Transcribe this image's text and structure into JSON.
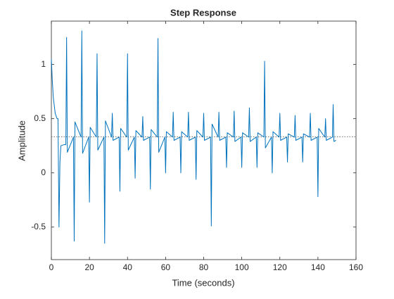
{
  "chart_data": {
    "type": "line",
    "title": "Step Response",
    "xlabel": "Time (seconds)",
    "ylabel": "Amplitude",
    "x": [
      0,
      0.5,
      1,
      2,
      3,
      3.5,
      4,
      4.5,
      5,
      6.5,
      7.6,
      8,
      8.4,
      11.6,
      12,
      12.4,
      15.6,
      16,
      16.4,
      19.6,
      20,
      20.4,
      23.6,
      24,
      24.4,
      27.6,
      28,
      28.4,
      31.6,
      32,
      32.4,
      35.6,
      36,
      36.4,
      39.6,
      40,
      40.4,
      43.6,
      44,
      44.4,
      47.6,
      48,
      48.4,
      51.6,
      52,
      52.4,
      55.6,
      56,
      56.4,
      59.6,
      60,
      60.4,
      63.6,
      64,
      64.4,
      67.6,
      68,
      68.4,
      71.6,
      72,
      72.4,
      75.6,
      76,
      76.4,
      79.6,
      80,
      80.4,
      83.6,
      84,
      84.4,
      87.6,
      88,
      88.4,
      91.6,
      92,
      92.4,
      95.6,
      96,
      96.4,
      99.6,
      100,
      100.4,
      103.6,
      104,
      104.4,
      107.6,
      108,
      108.4,
      111.6,
      112,
      112.4,
      115.6,
      116,
      116.4,
      119.6,
      120,
      120.4,
      123.6,
      124,
      124.4,
      127.6,
      128,
      128.4,
      131.6,
      132,
      132.4,
      135.6,
      136,
      136.4,
      139.6,
      140,
      140.4,
      143.6,
      144,
      144.4,
      147.6,
      148,
      148.4,
      149.5
    ],
    "series": [
      {
        "color": "#0072bd",
        "values": [
          1.05,
          0.85,
          0.7,
          0.55,
          0.5,
          0.5,
          -0.5,
          0.1,
          0.25,
          0.26,
          0.26,
          1.25,
          0.19,
          0.33,
          -0.63,
          0.47,
          0.33,
          1.31,
          0.18,
          0.33,
          -0.27,
          0.42,
          0.33,
          1.1,
          0.21,
          0.33,
          -0.65,
          0.48,
          0.33,
          0.55,
          0.3,
          0.33,
          -0.17,
          0.41,
          0.33,
          1.1,
          0.21,
          0.33,
          -0.05,
          0.39,
          0.33,
          0.52,
          0.3,
          0.33,
          -0.15,
          0.4,
          0.33,
          1.24,
          0.19,
          0.33,
          0.0,
          0.38,
          0.33,
          0.56,
          0.3,
          0.33,
          0.0,
          0.38,
          0.33,
          0.56,
          0.3,
          0.33,
          -0.06,
          0.39,
          0.33,
          0.55,
          0.3,
          0.33,
          -0.49,
          0.45,
          0.33,
          0.56,
          0.3,
          0.33,
          0.05,
          0.37,
          0.33,
          0.57,
          0.29,
          0.33,
          0.05,
          0.37,
          0.33,
          0.6,
          0.29,
          0.33,
          0.05,
          0.37,
          0.33,
          1.03,
          0.23,
          0.33,
          0.0,
          0.38,
          0.33,
          0.55,
          0.3,
          0.33,
          0.1,
          0.36,
          0.33,
          0.53,
          0.3,
          0.33,
          0.1,
          0.36,
          0.33,
          0.55,
          0.3,
          0.33,
          -0.22,
          0.41,
          0.33,
          0.5,
          0.3,
          0.33,
          0.63,
          0.29,
          0.3
        ]
      }
    ],
    "steady_state": 0.333,
    "xlim": [
      0,
      160
    ],
    "xticks": [
      0,
      20,
      40,
      60,
      80,
      100,
      120,
      140,
      160
    ],
    "ylim": [
      -0.8,
      1.4
    ],
    "yticks": [
      -0.5,
      0,
      0.5,
      1
    ]
  }
}
